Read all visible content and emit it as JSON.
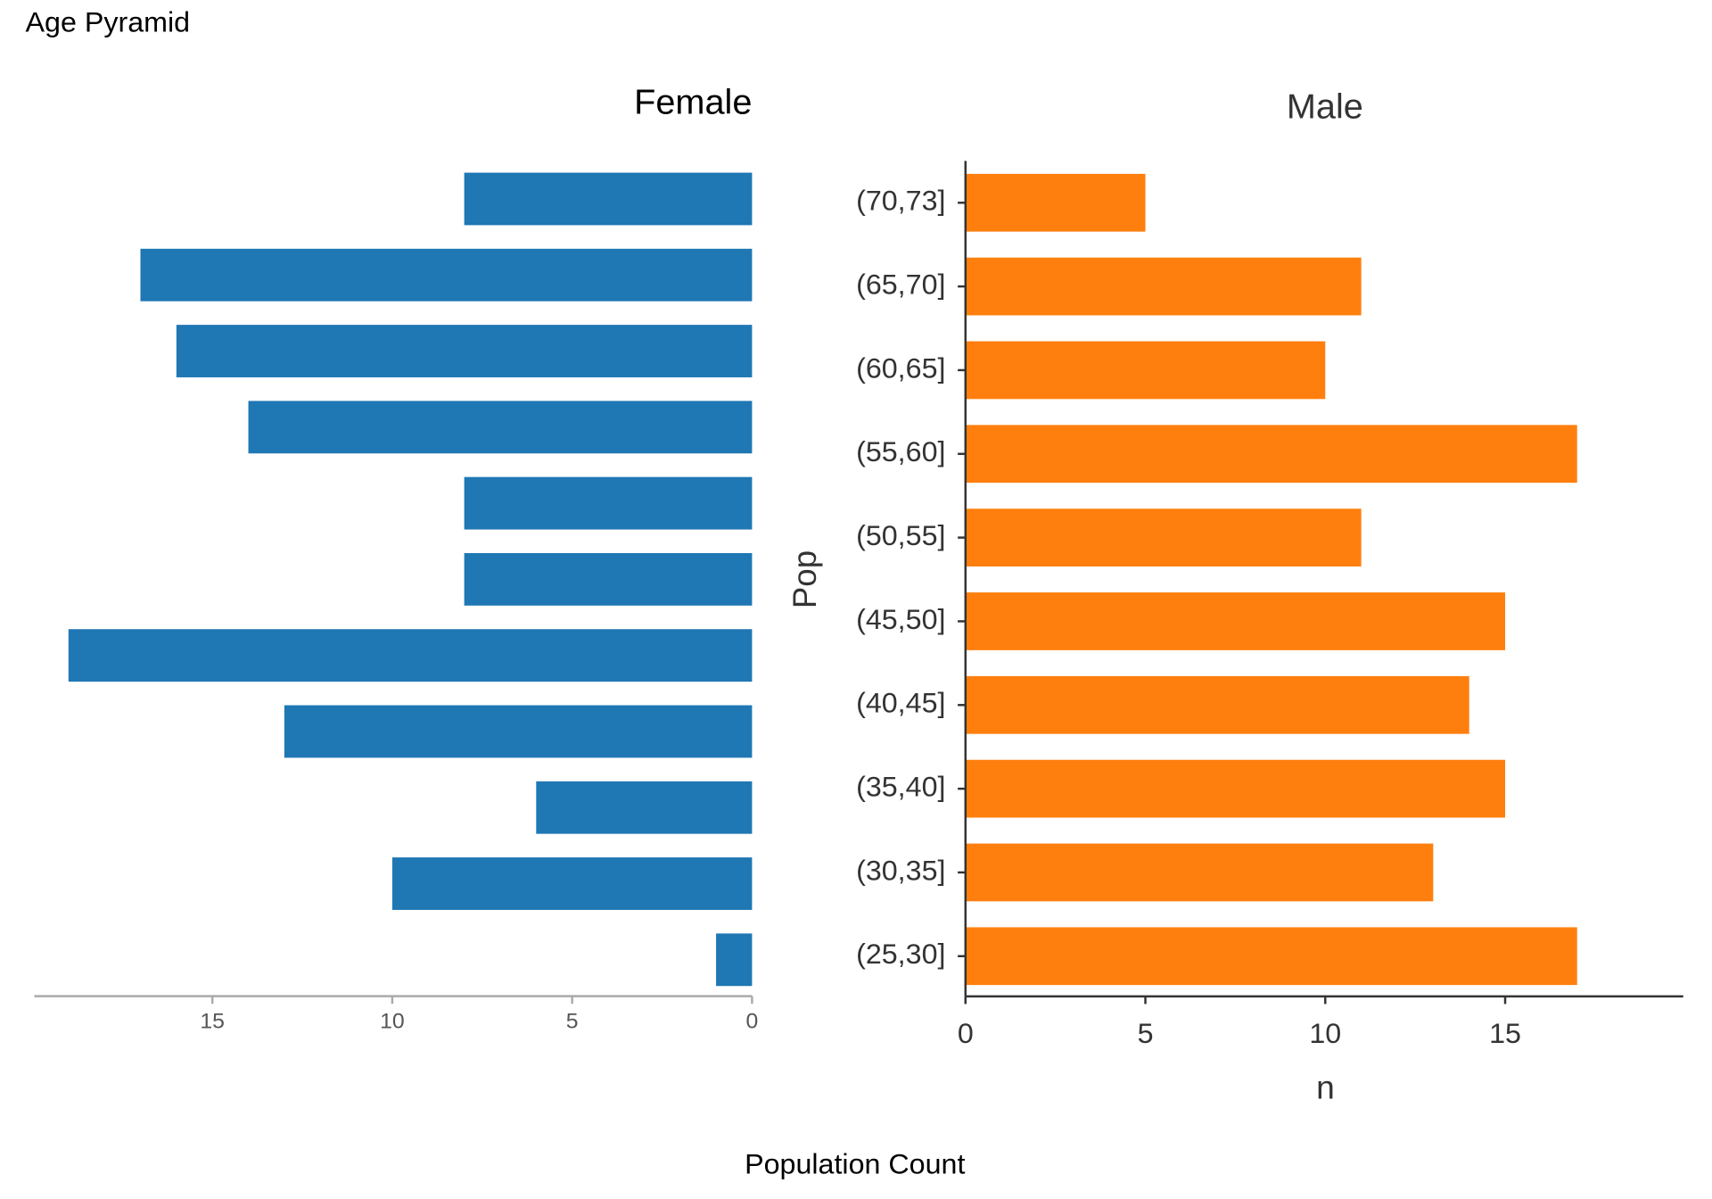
{
  "title": "Age Pyramid",
  "caption": "Population Count",
  "chart_data": [
    {
      "type": "bar",
      "orientation": "horizontal",
      "x_reversed": true,
      "title": "Female",
      "categories": [
        null,
        null,
        null,
        null,
        null,
        null,
        null,
        null,
        null,
        null,
        null
      ],
      "values": [
        8,
        17,
        16,
        14,
        8,
        8,
        19,
        13,
        6,
        10,
        1
      ],
      "color": "#1f77b4",
      "xlim": [
        0,
        19.95
      ],
      "xticks": [
        0,
        5,
        10,
        15
      ]
    },
    {
      "type": "bar",
      "orientation": "horizontal",
      "x_reversed": false,
      "title": "Male",
      "xlabel": "n",
      "ylabel": "Pop",
      "categories": [
        "(70,73]",
        "(65,70]",
        "(60,65]",
        "(55,60]",
        "(50,55]",
        "(45,50]",
        "(40,45]",
        "(35,40]",
        "(30,35]",
        "(25,30]"
      ],
      "values": [
        5,
        11,
        10,
        17,
        11,
        15,
        14,
        15,
        13,
        17
      ],
      "color": "#ff7f0e",
      "xlim": [
        0,
        19.95
      ],
      "xticks": [
        0,
        5,
        10,
        15
      ]
    }
  ]
}
